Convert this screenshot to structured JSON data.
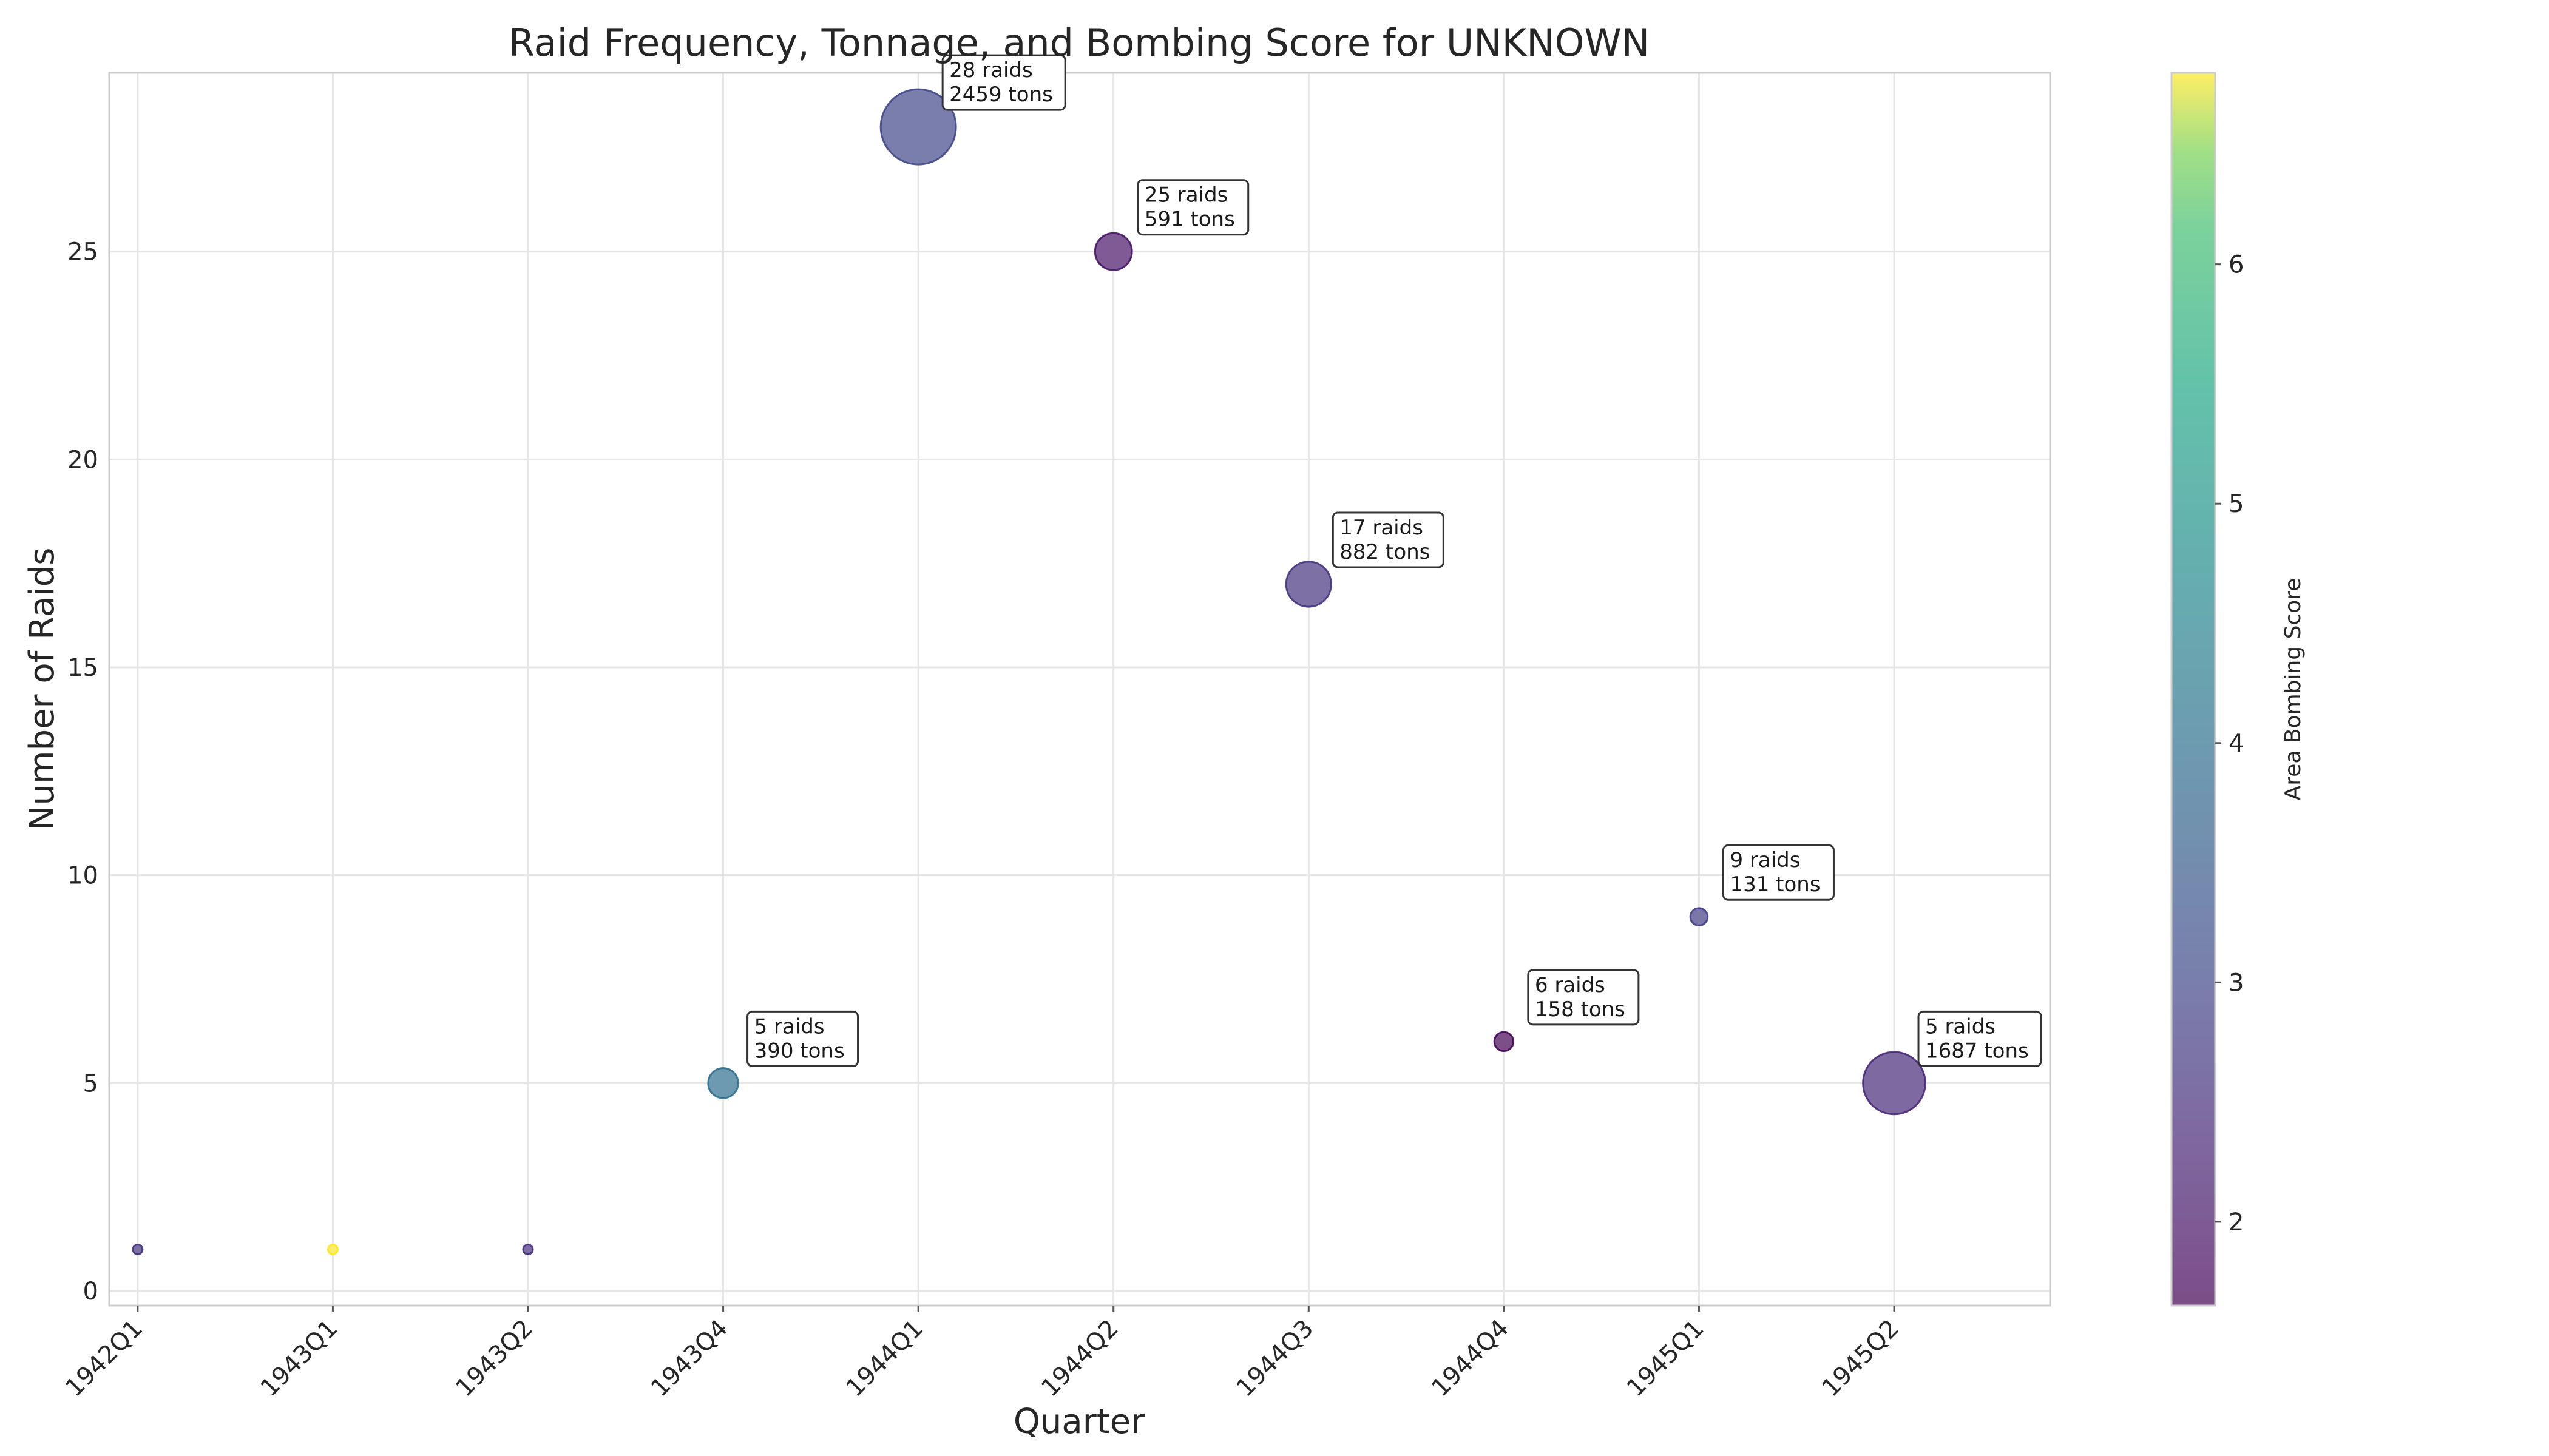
{
  "chart_data": {
    "type": "scatter",
    "title": "Raid Frequency, Tonnage, and Bombing Score for UNKNOWN",
    "xlabel": "Quarter",
    "ylabel": "Number of Raids",
    "categories": [
      "1942Q1",
      "1943Q1",
      "1943Q2",
      "1943Q4",
      "1944Q1",
      "1944Q2",
      "1944Q3",
      "1944Q4",
      "1945Q1",
      "1945Q2"
    ],
    "ylim": [
      -0.35,
      29.3
    ],
    "yticks": [
      0,
      5,
      10,
      15,
      20,
      25
    ],
    "grid": true,
    "points": [
      {
        "quarter": "1942Q1",
        "raids": 1,
        "tons": 20,
        "score": 2.6
      },
      {
        "quarter": "1943Q1",
        "raids": 1,
        "tons": 30,
        "score": 6.8
      },
      {
        "quarter": "1943Q2",
        "raids": 1,
        "tons": 15,
        "score": 2.5
      },
      {
        "quarter": "1943Q4",
        "raids": 5,
        "tons": 390,
        "score": 4.0,
        "label_line1": "5 raids",
        "label_line2": "390 tons"
      },
      {
        "quarter": "1944Q1",
        "raids": 28,
        "tons": 2459,
        "score": 3.0,
        "label_line1": "28 raids",
        "label_line2": "2459 tons"
      },
      {
        "quarter": "1944Q2",
        "raids": 25,
        "tons": 591,
        "score": 2.0,
        "label_line1": "25 raids",
        "label_line2": "591 tons"
      },
      {
        "quarter": "1944Q3",
        "raids": 17,
        "tons": 882,
        "score": 2.6,
        "label_line1": "17 raids",
        "label_line2": "882 tons"
      },
      {
        "quarter": "1944Q4",
        "raids": 6,
        "tons": 158,
        "score": 1.7,
        "label_line1": "6 raids",
        "label_line2": "158 tons"
      },
      {
        "quarter": "1945Q1",
        "raids": 9,
        "tons": 131,
        "score": 2.8,
        "label_line1": "9 raids",
        "label_line2": "131 tons"
      },
      {
        "quarter": "1945Q2",
        "raids": 5,
        "tons": 1687,
        "score": 2.4,
        "label_line1": "5 raids",
        "label_line2": "1687 tons"
      }
    ],
    "colorbar": {
      "label": "Area Bombing Score",
      "min": 1.65,
      "max": 6.8,
      "ticks": [
        2,
        3,
        4,
        5,
        6
      ],
      "colormap": "viridis",
      "alpha": 0.7
    }
  }
}
